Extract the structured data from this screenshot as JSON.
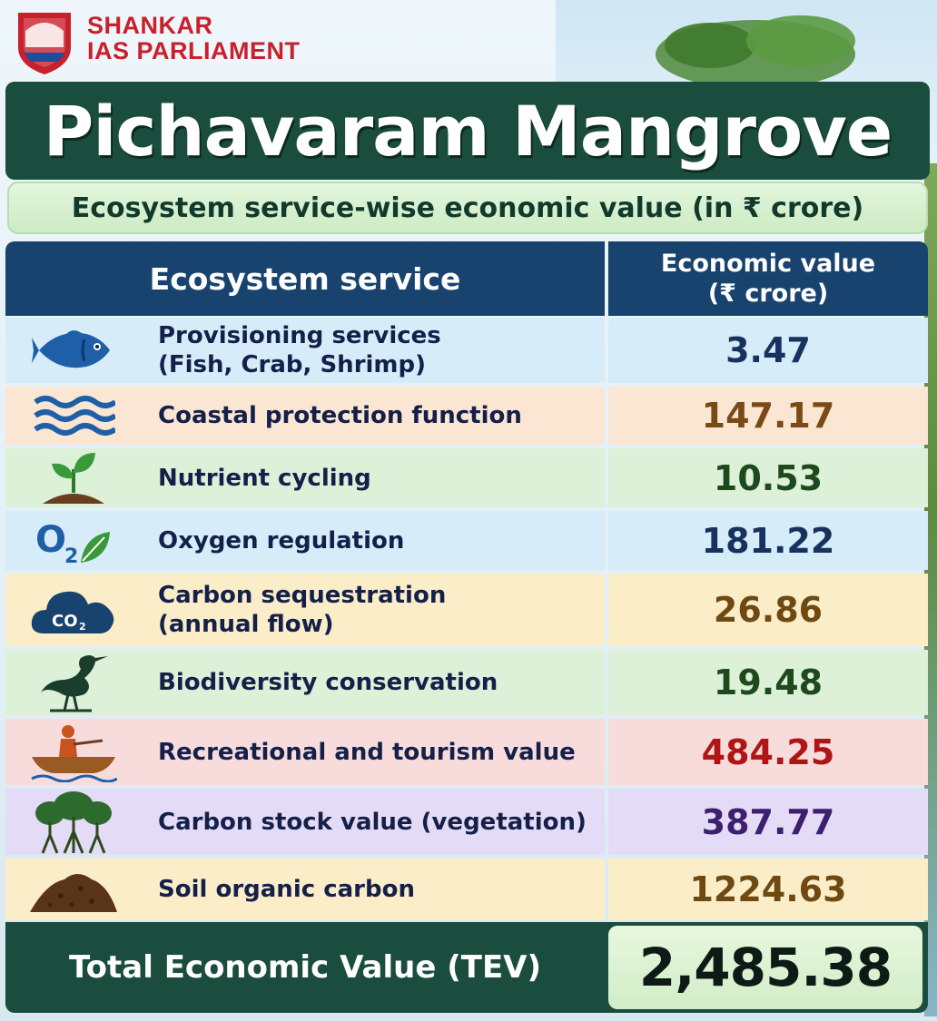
{
  "brand": {
    "line1": "SHANKAR",
    "line2": "IAS PARLIAMENT"
  },
  "chart_data": {
    "type": "table",
    "title": "Pichavaram Mangrove",
    "subtitle": "Ecosystem service-wise economic value (in ₹ crore)",
    "columns": [
      "Ecosystem service",
      "Economic value",
      "(₹ crore)"
    ],
    "rows": [
      {
        "service": [
          "Provisioning services",
          "(Fish, Crab, Shrimp)"
        ],
        "value": "3.47",
        "icon": "fish-icon",
        "row_bg": "#d6ecf8",
        "value_color": "#17325e"
      },
      {
        "service": [
          "Coastal protection function"
        ],
        "value": "147.17",
        "icon": "waves-icon",
        "row_bg": "#fbe6d4",
        "value_color": "#7a4a16"
      },
      {
        "service": [
          "Nutrient cycling"
        ],
        "value": "10.53",
        "icon": "seedling-icon",
        "row_bg": "#ddf0d8",
        "value_color": "#1d4a1d"
      },
      {
        "service": [
          "Oxygen regulation"
        ],
        "value": "181.22",
        "icon": "oxygen-leaf-icon",
        "row_bg": "#d6ecf8",
        "value_color": "#17325e"
      },
      {
        "service": [
          "Carbon sequestration",
          "(annual flow)"
        ],
        "value": "26.86",
        "icon": "co2-cloud-icon",
        "row_bg": "#faedc8",
        "value_color": "#6e4a12"
      },
      {
        "service": [
          "Biodiversity conservation"
        ],
        "value": "19.48",
        "icon": "heron-icon",
        "row_bg": "#ddf0d8",
        "value_color": "#1d4a1d"
      },
      {
        "service": [
          "Recreational and tourism value"
        ],
        "value": "484.25",
        "icon": "boat-icon",
        "row_bg": "#f8dcdc",
        "value_color": "#b01515"
      },
      {
        "service": [
          "Carbon stock value (vegetation)"
        ],
        "value": "387.77",
        "icon": "mangrove-tree-icon",
        "row_bg": "#e4dcf6",
        "value_color": "#3c1f6e"
      },
      {
        "service": [
          "Soil organic carbon"
        ],
        "value": "1224.63",
        "icon": "soil-mound-icon",
        "row_bg": "#faedc8",
        "value_color": "#6e4a12"
      }
    ],
    "total": {
      "label": "Total Economic Value (TEV)",
      "value": "2,485.38"
    }
  }
}
